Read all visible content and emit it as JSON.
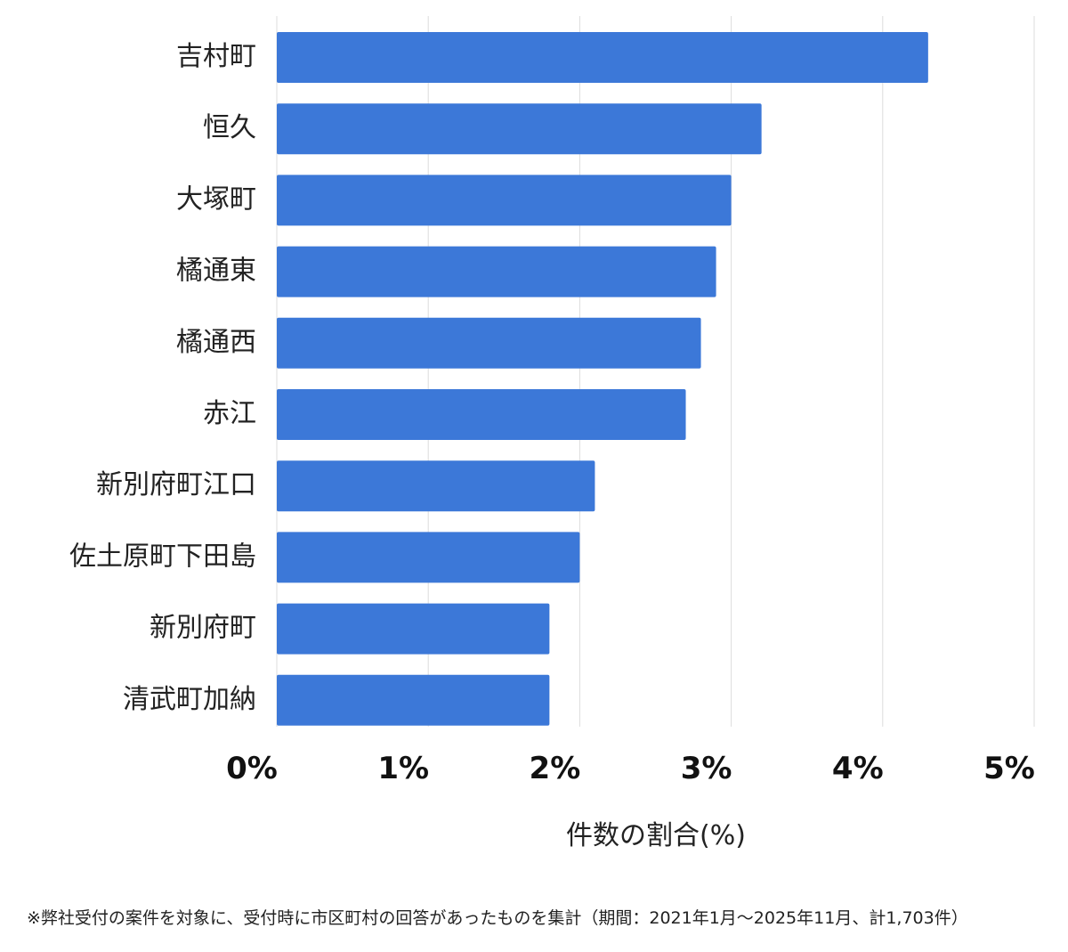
{
  "chart_data": {
    "type": "bar",
    "orientation": "horizontal",
    "categories": [
      "吉村町",
      "恒久",
      "大塚町",
      "橘通東",
      "橘通西",
      "赤江",
      "新別府町江口",
      "佐土原町下田島",
      "新別府町",
      "清武町加納"
    ],
    "values": [
      4.3,
      3.2,
      3.0,
      2.9,
      2.8,
      2.7,
      2.1,
      2.0,
      1.8,
      1.8
    ],
    "xlabel": "件数の割合(%)",
    "ylabel": "",
    "xlim": [
      0,
      5
    ],
    "xticks": [
      0,
      1,
      2,
      3,
      4,
      5
    ],
    "xtick_labels": [
      "0%",
      "1%",
      "2%",
      "3%",
      "4%",
      "5%"
    ],
    "grid": "vertical",
    "bar_color": "#3c78d8",
    "grid_color": "#dddddd"
  },
  "footnote": "※弊社受付の案件を対象に、受付時に市区町村の回答があったものを集計（期間：2021年1月〜2025年11月、計1,703件）"
}
